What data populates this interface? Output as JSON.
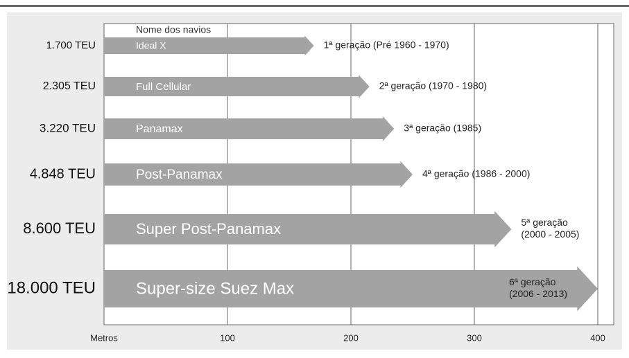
{
  "chart_data": {
    "type": "arrow-bar",
    "header": "Nome dos navios",
    "categories": [
      "1.700 TEU",
      "2.305 TEU",
      "3.220 TEU",
      "4.848 TEU",
      "8.600 TEU",
      "18.000 TEU"
    ],
    "names": [
      "Ideal X",
      "Full Cellular",
      "Panamax",
      "Post-Panamax",
      "Super Post-Panamax",
      "Super-size Suez Max"
    ],
    "values": [
      170,
      215,
      235,
      250,
      330,
      400
    ],
    "annotations": [
      [
        "1ª geração (Pré 1960 - 1970)"
      ],
      [
        "2ª geração (1970 - 1980)"
      ],
      [
        "3ª geração (1985)"
      ],
      [
        "4ª geração (1986 - 2000)"
      ],
      [
        "5ª geração",
        "(2000 - 2005)"
      ],
      [
        "6ª geração",
        "(2006 - 2013)"
      ]
    ],
    "xlim": [
      0,
      400
    ],
    "xticks": [
      {
        "value": 0,
        "label": "Metros"
      },
      100,
      200,
      300,
      400
    ],
    "grid": true,
    "color": "#a3a3a3"
  }
}
